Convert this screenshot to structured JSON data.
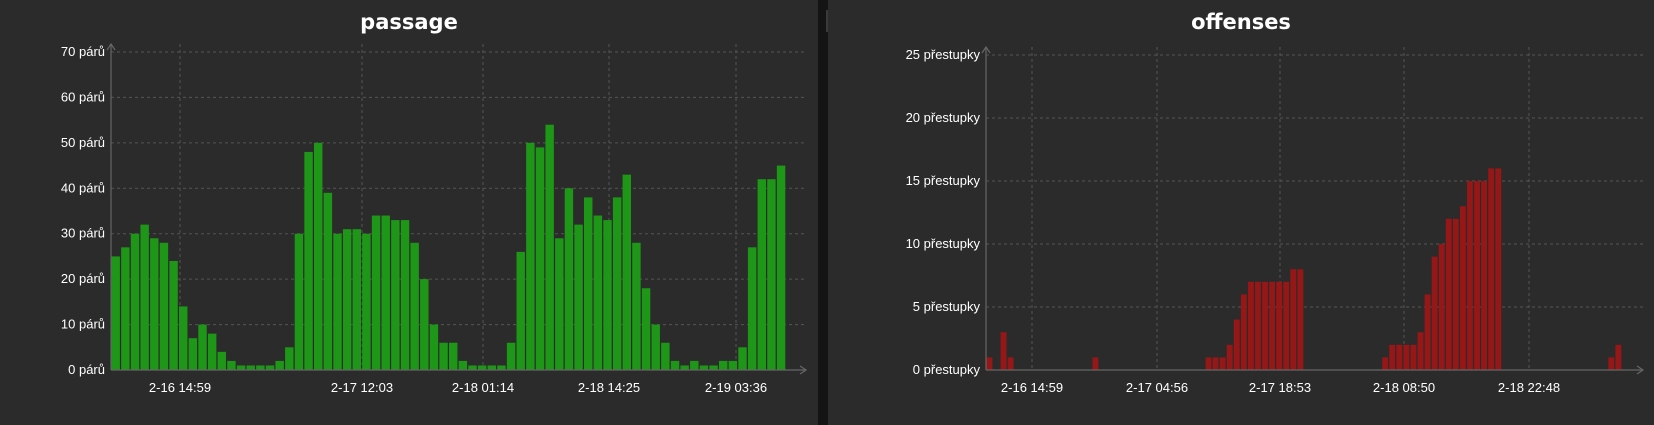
{
  "chart_data": [
    {
      "type": "bar",
      "title": "passage",
      "color": "#1e9617",
      "y_unit": "párů",
      "ylim": [
        0,
        70
      ],
      "y_ticks": [
        "0 párů",
        "10 párů",
        "20 párů",
        "30 párů",
        "40 párů",
        "50 párů",
        "60 párů",
        "70 párů"
      ],
      "x_ticks": [
        "2-16 14:59",
        "2-17 12:03",
        "2-18 01:14",
        "2-18 14:25",
        "2-19 03:36"
      ],
      "grid": true,
      "values": [
        25,
        27,
        30,
        32,
        29,
        28,
        24,
        14,
        7,
        10,
        8,
        4,
        2,
        1,
        1,
        1,
        1,
        2,
        5,
        30,
        48,
        50,
        39,
        30,
        31,
        31,
        30,
        34,
        34,
        33,
        33,
        28,
        20,
        10,
        6,
        6,
        2,
        1,
        1,
        1,
        1,
        6,
        26,
        50,
        49,
        54,
        29,
        40,
        32,
        38,
        34,
        33,
        38,
        43,
        28,
        18,
        10,
        6,
        2,
        1,
        2,
        1,
        1,
        2,
        2,
        5,
        27,
        42,
        42,
        45
      ]
    },
    {
      "type": "bar",
      "title": "offenses",
      "color": "#961717",
      "y_unit": "přestupky",
      "ylim": [
        0,
        25
      ],
      "y_ticks": [
        "0 přestupky",
        "5 přestupky",
        "10 přestupky",
        "15 přestupky",
        "20 přestupky",
        "25 přestupky"
      ],
      "x_ticks": [
        "2-16 14:59",
        "2-17 04:56",
        "2-17 18:53",
        "2-18 08:50",
        "2-18 22:48"
      ],
      "grid": true,
      "values": [
        1,
        0,
        3,
        1,
        0,
        0,
        0,
        0,
        0,
        0,
        0,
        0,
        0,
        0,
        0,
        1,
        0,
        0,
        0,
        0,
        0,
        0,
        0,
        0,
        0,
        0,
        0,
        0,
        0,
        0,
        0,
        1,
        1,
        1,
        2,
        4,
        6,
        7,
        7,
        7,
        7,
        7,
        7,
        8,
        8,
        0,
        0,
        0,
        0,
        0,
        0,
        0,
        0,
        0,
        0,
        0,
        1,
        2,
        2,
        2,
        2,
        3,
        6,
        9,
        10,
        12,
        12,
        13,
        15,
        15,
        15,
        16,
        16,
        0,
        0,
        0,
        0,
        0,
        0,
        0,
        0,
        0,
        0,
        0,
        0,
        0,
        0,
        0,
        1,
        2
      ]
    }
  ]
}
